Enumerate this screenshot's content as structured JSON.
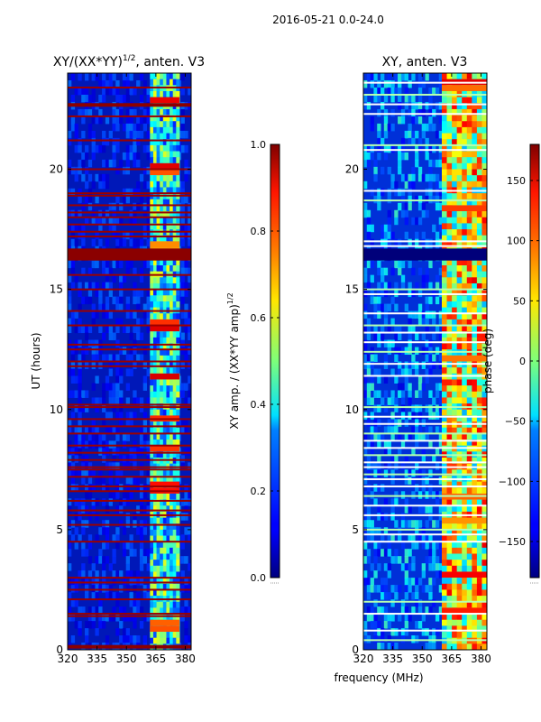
{
  "figure": {
    "suptitle": "2016-05-21 0.0-24.0",
    "shared_xlabel": "frequency (MHz)"
  },
  "chart_data": [
    {
      "type": "heatmap",
      "id": "left",
      "title_main": "XY/(XX*YY)",
      "title_sup": "1/2",
      "title_tail": ", anten. V3",
      "ylabel": "UT (hours)",
      "xlim": [
        320,
        383
      ],
      "ylim": [
        0,
        24
      ],
      "xticks": [
        320,
        335,
        350,
        365,
        380
      ],
      "yticks": [
        0,
        5,
        10,
        15,
        20
      ],
      "colormap": "jet",
      "colorbar": {
        "label_main": "XY amp. / (XX*YY amp)",
        "label_sup": "1/2",
        "range": [
          0.0,
          1.0
        ],
        "ticks": [
          0.0,
          0.2,
          0.4,
          0.6,
          0.8,
          1.0
        ],
        "tick_labels": [
          "0.0",
          "0.2",
          "0.4",
          "0.6",
          "0.8",
          "1.0"
        ]
      },
      "saturated_bands_hours": [
        [
          16.2,
          16.7
        ],
        [
          22.6,
          22.75
        ],
        [
          0.05,
          0.2
        ]
      ],
      "flagged_rows_hours": [
        1.4,
        1.5,
        2.1,
        2.5,
        2.8,
        3.0,
        4.5,
        5.2,
        5.6,
        5.8,
        6.2,
        6.6,
        6.8,
        7.2,
        7.5,
        7.6,
        7.9,
        8.2,
        8.5,
        9.0,
        9.3,
        9.6,
        10.1,
        10.2,
        11.8,
        12.0,
        12.5,
        12.7,
        13.5,
        14.1,
        15.0,
        15.6,
        17.2,
        17.4,
        17.7,
        18.0,
        18.2,
        18.5,
        18.9,
        19.0,
        20.0,
        21.2,
        22.2,
        23.4
      ],
      "hot_region": {
        "x_range": [
          362,
          377
        ],
        "y_range": [
          0,
          24
        ]
      }
    },
    {
      "type": "heatmap",
      "id": "right",
      "title": "XY, anten. V3",
      "xlim": [
        320,
        383
      ],
      "ylim": [
        0,
        24
      ],
      "xticks": [
        320,
        335,
        350,
        365,
        380
      ],
      "yticks": [
        0,
        5,
        10,
        15,
        20
      ],
      "colormap": "jet",
      "colorbar": {
        "label": "phase (deg)",
        "range": [
          -180,
          180
        ],
        "ticks": [
          -150,
          -100,
          -50,
          0,
          50,
          100,
          150
        ],
        "tick_labels": [
          "−150",
          "−100",
          "−50",
          "0",
          "50",
          "100",
          "150"
        ]
      },
      "flagged_band_hours": [
        [
          16.2,
          16.7
        ]
      ],
      "stripe_rows_hours": [
        0.4,
        0.8,
        1.5,
        2.0,
        4.5,
        4.8,
        5.0,
        5.6,
        6.0,
        6.4,
        6.8,
        7.1,
        7.3,
        7.6,
        7.8,
        8.1,
        8.4,
        8.7,
        9.0,
        9.4,
        9.7,
        10.1,
        11.4,
        11.9,
        12.4,
        12.8,
        13.2,
        13.5,
        14.0,
        14.8,
        15.0,
        16.8,
        17.0,
        18.7,
        19.1,
        20.8,
        21.0,
        22.3,
        22.7,
        23.1,
        23.6
      ],
      "hot_region": {
        "x_range": [
          360,
          383
        ],
        "y_range": [
          0,
          24
        ]
      }
    }
  ]
}
